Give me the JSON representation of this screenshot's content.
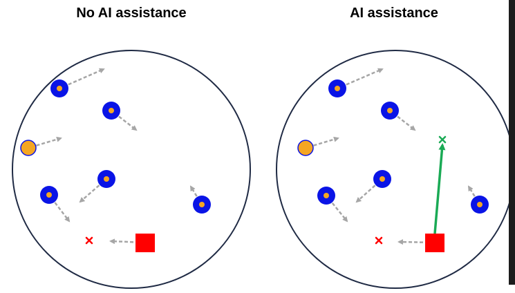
{
  "panels": [
    {
      "id": "no-ai",
      "title": "No AI assistance",
      "agents": [
        {
          "kind": "blue-ring",
          "pos": [
            86,
            128
          ],
          "arrow_to": [
            150,
            100
          ]
        },
        {
          "kind": "blue-ring",
          "pos": [
            161,
            160
          ],
          "arrow_to": [
            197,
            188
          ]
        },
        {
          "kind": "orange",
          "pos": [
            41,
            214
          ],
          "arrow_to": [
            88,
            200
          ]
        },
        {
          "kind": "blue-ring",
          "pos": [
            154,
            259
          ],
          "arrow_to": [
            116,
            292
          ]
        },
        {
          "kind": "blue-ring",
          "pos": [
            71,
            282
          ],
          "arrow_to": [
            100,
            320
          ]
        },
        {
          "kind": "blue-ring",
          "pos": [
            292,
            296
          ],
          "arrow_to": [
            276,
            270
          ]
        }
      ],
      "target_x": [
        129,
        348
      ],
      "player": {
        "pos": [
          210,
          351
        ],
        "arrow_to": [
          160,
          349
        ]
      },
      "assist_arrow": null
    },
    {
      "id": "ai",
      "title": "AI assistance",
      "agents": [
        {
          "kind": "blue-ring",
          "pos": [
            488,
            128
          ],
          "arrow_to": [
            553,
            100
          ]
        },
        {
          "kind": "blue-ring",
          "pos": [
            564,
            160
          ],
          "arrow_to": [
            600,
            188
          ]
        },
        {
          "kind": "orange",
          "pos": [
            442,
            214
          ],
          "arrow_to": [
            489,
            200
          ]
        },
        {
          "kind": "blue-ring",
          "pos": [
            553,
            259
          ],
          "arrow_to": [
            516,
            292
          ]
        },
        {
          "kind": "blue-ring",
          "pos": [
            472,
            283
          ],
          "arrow_to": [
            502,
            320
          ]
        },
        {
          "kind": "blue-ring",
          "pos": [
            694,
            296
          ],
          "arrow_to": [
            678,
            270
          ]
        }
      ],
      "target_x": [
        548,
        348
      ],
      "player": {
        "pos": [
          629,
          351
        ],
        "arrow_to": [
          577,
          350
        ]
      },
      "assist_arrow": {
        "from": [
          629,
          338
        ],
        "to": [
          640,
          210
        ],
        "goal_x": [
          640,
          202
        ]
      }
    }
  ],
  "colors": {
    "circle_outline": "#1f2a44",
    "agent_blue": "#0a14e6",
    "agent_orange": "#f5a623",
    "arrow_gray": "#a6a6a6",
    "target_red": "#ff0000",
    "assist_green": "#1aaa55"
  }
}
